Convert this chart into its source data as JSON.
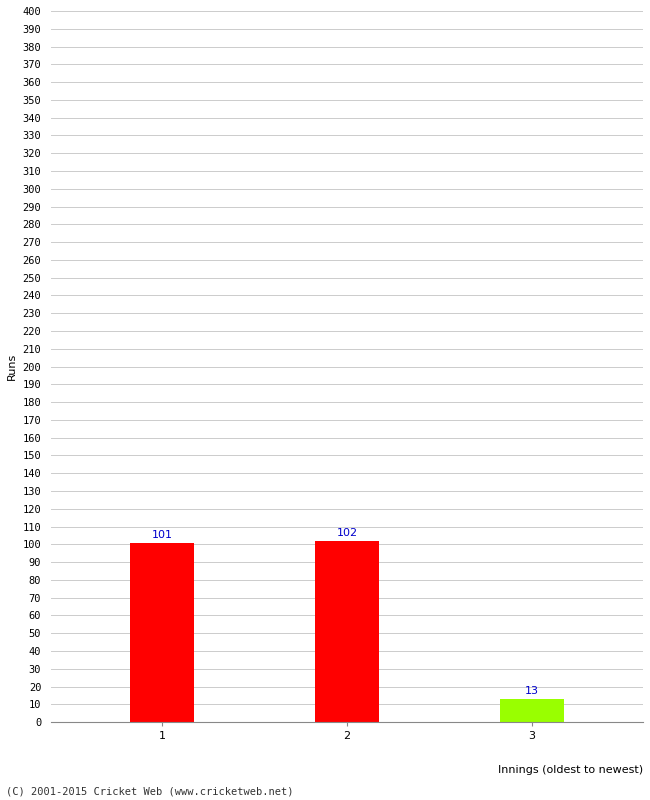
{
  "xlabel": "Innings (oldest to newest)",
  "ylabel": "Runs",
  "categories": [
    "1",
    "2",
    "3"
  ],
  "values": [
    101,
    102,
    13
  ],
  "bar_colors": [
    "#ff0000",
    "#ff0000",
    "#99ff00"
  ],
  "annotation_color": "#0000cc",
  "ylim": [
    0,
    400
  ],
  "ytick_step": 10,
  "background_color": "#ffffff",
  "grid_color": "#cccccc",
  "footer_text": "(C) 2001-2015 Cricket Web (www.cricketweb.net)"
}
